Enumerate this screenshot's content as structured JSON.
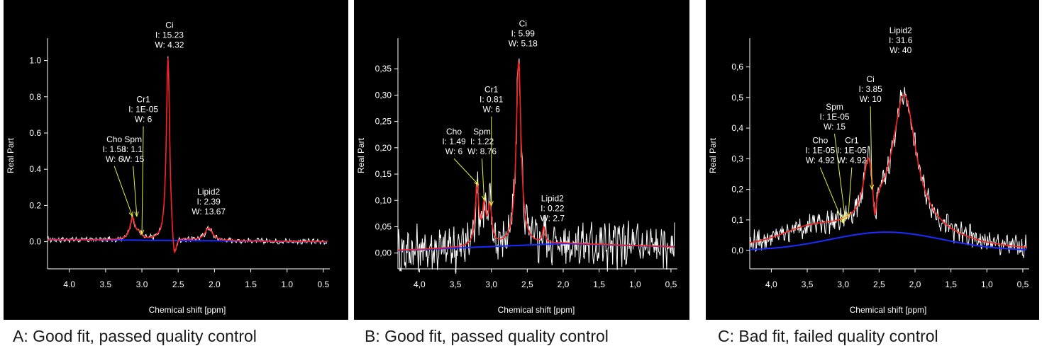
{
  "colors": {
    "background": "#000000",
    "spectrum": "#ffffff",
    "fit": "#ff2020",
    "baseline": "#1a2cff",
    "arrow": "#e8f040",
    "axis": "#ffffff"
  },
  "chart_data": [
    {
      "type": "line",
      "caption": "A: Good fit, passed quality control",
      "xlabel": "Chemical shift [ppm]",
      "ylabel": "Real Part",
      "xlim": [
        4.3,
        0.45
      ],
      "ylim": [
        -0.15,
        1.1
      ],
      "xticks": [
        "4.0",
        "3.5",
        "3.0",
        "2.5",
        "2.0",
        "1.5",
        "1.0",
        "0.5"
      ],
      "xtick_values": [
        4.0,
        3.5,
        3.0,
        2.5,
        2.0,
        1.5,
        1.0,
        0.5
      ],
      "yticks": [
        "0.0",
        "0.2",
        "0.4",
        "0.6",
        "0.8",
        "1.0"
      ],
      "ytick_values": [
        0,
        0.2,
        0.4,
        0.6,
        0.8,
        1.0
      ],
      "noise": 0.012,
      "baseline": [
        [
          4.3,
          0.012
        ],
        [
          0.45,
          0.0
        ]
      ],
      "peaks": [
        {
          "center": 3.13,
          "height": 0.12,
          "width": 0.04
        },
        {
          "center": 3.04,
          "height": 0.03,
          "width": 0.04
        },
        {
          "center": 2.64,
          "height": 1.03,
          "width": 0.028
        },
        {
          "center": 2.555,
          "height": -0.16,
          "width": 0.035
        },
        {
          "center": 2.08,
          "height": 0.07,
          "width": 0.06
        }
      ],
      "annotations": [
        {
          "lines": [
            "Ci",
            "I: 15.23",
            "W: 4.32"
          ],
          "x": 2.62,
          "y": 1.18,
          "arrow_to": null
        },
        {
          "lines": [
            "Cr1",
            "I: 1E-05",
            "W: 6"
          ],
          "x": 2.98,
          "y": 0.77,
          "arrow_to": [
            3.0,
            0.04
          ]
        },
        {
          "lines": [
            "Cho",
            "I: 1.58",
            "W: 6"
          ],
          "x": 3.38,
          "y": 0.55,
          "arrow_to": [
            3.13,
            0.14
          ]
        },
        {
          "lines": [
            "Spm",
            "I: 1.1",
            "W: 15"
          ],
          "x": 3.12,
          "y": 0.55,
          "arrow_to": [
            3.07,
            0.14
          ]
        },
        {
          "lines": [
            "Lipid2",
            "I: 2.39",
            "W: 13.67"
          ],
          "x": 2.08,
          "y": 0.26,
          "arrow_to": null
        }
      ]
    },
    {
      "type": "line",
      "caption": "B: Good fit, passed quality control",
      "xlabel": "Chemical shift [ppm]",
      "ylabel": "Real Part",
      "xlim": [
        4.3,
        0.45
      ],
      "ylim": [
        -0.03,
        0.4
      ],
      "xticks": [
        "4,0",
        "3,5",
        "3,0",
        "2,5",
        "2,0",
        "1,5",
        "1,0",
        "0,5"
      ],
      "xtick_values": [
        4.0,
        3.5,
        3.0,
        2.5,
        2.0,
        1.5,
        1.0,
        0.5
      ],
      "yticks": [
        "0,00",
        "0,05",
        "0,10",
        "0,15",
        "0,20",
        "0,25",
        "0,30",
        "0,35"
      ],
      "ytick_values": [
        0,
        0.05,
        0.1,
        0.15,
        0.2,
        0.25,
        0.3,
        0.35
      ],
      "noise": 0.035,
      "baseline": [
        [
          4.3,
          0.005
        ],
        [
          2.0,
          0.018
        ],
        [
          0.45,
          0.012
        ]
      ],
      "peaks": [
        {
          "center": 3.2,
          "height": 0.11,
          "width": 0.03
        },
        {
          "center": 3.1,
          "height": 0.07,
          "width": 0.03
        },
        {
          "center": 3.02,
          "height": 0.07,
          "width": 0.03
        },
        {
          "center": 2.62,
          "height": 0.35,
          "width": 0.04
        },
        {
          "center": 2.27,
          "height": 0.03,
          "width": 0.02
        }
      ],
      "annotations": [
        {
          "lines": [
            "Ci",
            "I: 5.99",
            "W: 5.18"
          ],
          "x": 2.56,
          "y": 0.43,
          "arrow_to": null
        },
        {
          "lines": [
            "Cr1",
            "I: 0.81",
            "W: 6"
          ],
          "x": 3.0,
          "y": 0.305,
          "arrow_to": [
            3.0,
            0.09
          ]
        },
        {
          "lines": [
            "Cho",
            "I: 1.49",
            "W: 6"
          ],
          "x": 3.52,
          "y": 0.225,
          "arrow_to": [
            3.18,
            0.13
          ]
        },
        {
          "lines": [
            "Spm",
            "I: 1.22",
            "W: 8.76"
          ],
          "x": 3.13,
          "y": 0.225,
          "arrow_to": [
            3.1,
            0.1
          ]
        },
        {
          "lines": [
            "Lipid2",
            "I: 0.22",
            "W: 2.7"
          ],
          "x": 2.15,
          "y": 0.098,
          "arrow_to": null
        }
      ]
    },
    {
      "type": "line",
      "caption": "C: Bad fit, failed quality control",
      "xlabel": "Chemical shift [ppm]",
      "ylabel": "Real Part",
      "xlim": [
        4.3,
        0.45
      ],
      "ylim": [
        -0.06,
        0.68
      ],
      "xticks": [
        "4,0",
        "3,5",
        "3,0",
        "2,5",
        "2,0",
        "1,5",
        "1,0",
        "0,5"
      ],
      "xtick_values": [
        4.0,
        3.5,
        3.0,
        2.5,
        2.0,
        1.5,
        1.0,
        0.5
      ],
      "yticks": [
        "0,0",
        "0,1",
        "0,2",
        "0,3",
        "0,4",
        "0,5",
        "0,6"
      ],
      "ytick_values": [
        0,
        0.1,
        0.2,
        0.3,
        0.4,
        0.5,
        0.6
      ],
      "noise": 0.03,
      "baseline_gauss": {
        "offset": 0.0,
        "height": 0.06,
        "center": 2.4,
        "width": 1.1
      },
      "peaks": [
        {
          "center": 2.15,
          "height": 0.44,
          "width": 0.2
        },
        {
          "center": 2.65,
          "height": 0.18,
          "width": 0.08
        },
        {
          "center": 2.56,
          "height": -0.12,
          "width": 0.03
        },
        {
          "center": 3.5,
          "height": 0.05,
          "width": 0.6
        }
      ],
      "annotations": [
        {
          "lines": [
            "Lipid2",
            "I: 31.6",
            "W: 40"
          ],
          "x": 2.2,
          "y": 0.71,
          "arrow_to": null
        },
        {
          "lines": [
            "Ci",
            "I: 3.85",
            "W: 10"
          ],
          "x": 2.62,
          "y": 0.55,
          "arrow_to": [
            2.6,
            0.2
          ]
        },
        {
          "lines": [
            "Spm",
            "I: 1E-05",
            "W: 15"
          ],
          "x": 3.12,
          "y": 0.46,
          "arrow_to": [
            2.97,
            0.1
          ]
        },
        {
          "lines": [
            "Cr1",
            "I: 1E-05",
            "W: 4.92"
          ],
          "x": 2.88,
          "y": 0.35,
          "arrow_to": [
            2.93,
            0.11
          ]
        },
        {
          "lines": [
            "Cho",
            "I: 1E-05",
            "W: 4.92"
          ],
          "x": 3.32,
          "y": 0.35,
          "arrow_to": [
            3.0,
            0.09
          ]
        }
      ]
    }
  ]
}
